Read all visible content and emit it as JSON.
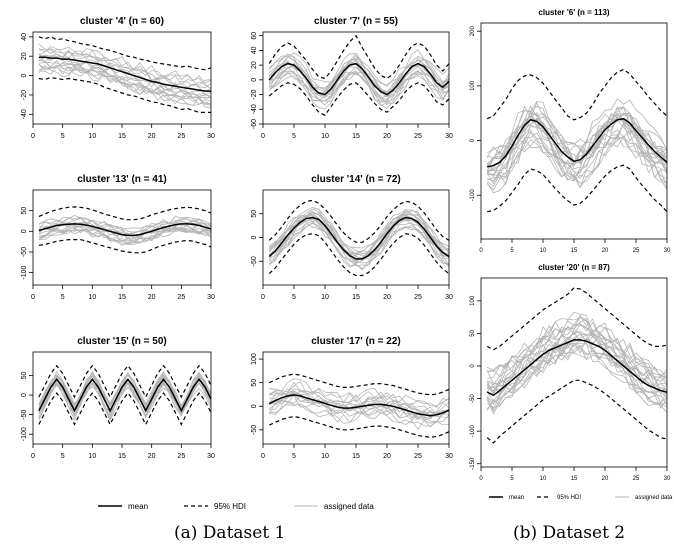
{
  "captions": {
    "left": "(a) Dataset 1",
    "right": "(b) Dataset 2"
  },
  "legend": {
    "mean": "mean",
    "hdi": "95% HDI",
    "data": "assigned data"
  },
  "colors": {
    "mean": "#000000",
    "hdi": "#000000",
    "data": "#b4b4b4"
  },
  "chart_data": [
    {
      "type": "line",
      "title": "cluster '4' (n = 60)",
      "xlim": [
        0,
        30
      ],
      "ylim": [
        -50,
        45
      ],
      "x_ticks": [
        0,
        5,
        10,
        15,
        20,
        25,
        30
      ],
      "y_ticks": [
        -40,
        -20,
        0,
        20,
        40
      ],
      "mean": [
        19,
        19,
        18,
        18,
        17,
        17,
        16,
        15,
        14,
        13,
        12,
        10,
        8,
        6,
        4,
        2,
        0,
        -2,
        -4,
        -6,
        -7,
        -9,
        -10,
        -11,
        -12,
        -13,
        -14,
        -15,
        -16,
        -16
      ],
      "hdi_upper": [
        40,
        38,
        40,
        37,
        38,
        36,
        35,
        33,
        32,
        31,
        29,
        27,
        26,
        24,
        22,
        20,
        19,
        17,
        16,
        14,
        13,
        12,
        11,
        10,
        9,
        10,
        8,
        7,
        6,
        8
      ],
      "hdi_lower": [
        -3,
        -4,
        -2,
        -3,
        -4,
        -3,
        -4,
        -5,
        -6,
        -7,
        -9,
        -12,
        -14,
        -16,
        -18,
        -20,
        -21,
        -23,
        -25,
        -27,
        -28,
        -30,
        -31,
        -33,
        -35,
        -34,
        -36,
        -38,
        -38,
        -38
      ],
      "data_spread": 14,
      "data_lines": 16
    },
    {
      "type": "line",
      "title": "cluster '7' (n = 55)",
      "xlim": [
        0,
        30
      ],
      "ylim": [
        -60,
        65
      ],
      "x_ticks": [
        0,
        5,
        10,
        15,
        20,
        25,
        30
      ],
      "y_ticks": [
        -60,
        -40,
        -20,
        0,
        20,
        40,
        60
      ],
      "mean": [
        0,
        10,
        18,
        22,
        20,
        12,
        2,
        -10,
        -18,
        -20,
        -12,
        0,
        12,
        20,
        22,
        15,
        4,
        -8,
        -16,
        -20,
        -14,
        -4,
        8,
        18,
        22,
        18,
        8,
        -4,
        -10,
        -2
      ],
      "hdi_upper": [
        22,
        35,
        45,
        50,
        46,
        36,
        26,
        14,
        4,
        2,
        12,
        26,
        40,
        52,
        60,
        44,
        30,
        16,
        6,
        2,
        8,
        20,
        34,
        46,
        50,
        46,
        34,
        20,
        12,
        22
      ],
      "hdi_lower": [
        -22,
        -15,
        -8,
        -4,
        -6,
        -12,
        -22,
        -34,
        -44,
        -48,
        -36,
        -24,
        -14,
        -6,
        -4,
        -12,
        -22,
        -32,
        -40,
        -44,
        -36,
        -28,
        -16,
        -8,
        -4,
        -8,
        -18,
        -30,
        -34,
        -26
      ],
      "data_spread": 15,
      "data_lines": 16
    },
    {
      "type": "line",
      "title": "cluster '13' (n = 41)",
      "xlim": [
        0,
        30
      ],
      "ylim": [
        -130,
        100
      ],
      "x_ticks": [
        0,
        5,
        10,
        15,
        20,
        25,
        30
      ],
      "y_ticks": [
        -100,
        -50,
        0,
        50
      ],
      "mean": [
        2,
        6,
        10,
        14,
        16,
        17,
        18,
        17,
        15,
        12,
        8,
        4,
        0,
        -4,
        -8,
        -10,
        -10,
        -8,
        -4,
        0,
        5,
        9,
        13,
        16,
        18,
        18,
        17,
        14,
        10,
        6
      ],
      "hdi_upper": [
        36,
        42,
        48,
        52,
        56,
        58,
        59,
        58,
        56,
        52,
        47,
        42,
        38,
        34,
        30,
        28,
        28,
        30,
        34,
        40,
        44,
        48,
        52,
        55,
        57,
        58,
        57,
        54,
        50,
        44
      ],
      "hdi_lower": [
        -34,
        -32,
        -28,
        -24,
        -22,
        -20,
        -20,
        -20,
        -24,
        -28,
        -32,
        -36,
        -40,
        -44,
        -48,
        -50,
        -52,
        -52,
        -50,
        -44,
        -38,
        -34,
        -30,
        -26,
        -24,
        -22,
        -24,
        -28,
        -32,
        -38
      ],
      "data_spread": 20,
      "data_lines": 16
    },
    {
      "type": "line",
      "title": "cluster '14' (n = 72)",
      "xlim": [
        0,
        30
      ],
      "ylim": [
        -100,
        100
      ],
      "x_ticks": [
        0,
        5,
        10,
        15,
        20,
        25,
        30
      ],
      "y_ticks": [
        -50,
        0,
        50
      ],
      "mean": [
        -40,
        -28,
        -12,
        5,
        20,
        32,
        40,
        42,
        38,
        25,
        8,
        -10,
        -26,
        -38,
        -45,
        -45,
        -38,
        -26,
        -10,
        8,
        24,
        36,
        42,
        40,
        32,
        18,
        0,
        -18,
        -32,
        -40
      ],
      "hdi_upper": [
        -6,
        6,
        22,
        40,
        56,
        68,
        76,
        78,
        72,
        60,
        44,
        26,
        10,
        -2,
        -10,
        -10,
        -2,
        10,
        26,
        44,
        58,
        70,
        76,
        74,
        66,
        52,
        34,
        16,
        2,
        -6
      ],
      "hdi_lower": [
        -76,
        -64,
        -46,
        -30,
        -14,
        -2,
        6,
        8,
        4,
        -10,
        -28,
        -46,
        -62,
        -74,
        -80,
        -80,
        -74,
        -62,
        -46,
        -28,
        -12,
        0,
        8,
        6,
        -2,
        -16,
        -34,
        -52,
        -66,
        -76
      ],
      "data_spread": 18,
      "data_lines": 18
    },
    {
      "type": "line",
      "title": "cluster '15' (n = 50)",
      "xlim": [
        0,
        30
      ],
      "ylim": [
        -125,
        110
      ],
      "x_ticks": [
        0,
        5,
        10,
        15,
        20,
        25,
        30
      ],
      "y_ticks": [
        -100,
        -50,
        0,
        50
      ],
      "mean": [
        -40,
        -10,
        20,
        40,
        20,
        -10,
        -40,
        -10,
        20,
        40,
        20,
        -10,
        -40,
        -10,
        20,
        40,
        20,
        -10,
        -40,
        -10,
        20,
        40,
        20,
        -10,
        -40,
        -10,
        20,
        40,
        20,
        -10
      ],
      "hdi_upper": [
        -5,
        25,
        55,
        75,
        55,
        25,
        -5,
        25,
        55,
        75,
        55,
        25,
        -5,
        25,
        55,
        75,
        55,
        25,
        -5,
        25,
        55,
        75,
        55,
        25,
        -5,
        25,
        55,
        75,
        55,
        25
      ],
      "hdi_lower": [
        -75,
        -45,
        -15,
        5,
        -15,
        -45,
        -75,
        -45,
        -15,
        5,
        -15,
        -45,
        -75,
        -45,
        -15,
        5,
        -15,
        -45,
        -75,
        -45,
        -15,
        5,
        -15,
        -45,
        -75,
        -45,
        -15,
        5,
        -15,
        -45
      ],
      "data_spread": 18,
      "data_lines": 16
    },
    {
      "type": "line",
      "title": "cluster '17' (n = 22)",
      "xlim": [
        0,
        30
      ],
      "ylim": [
        -80,
        115
      ],
      "x_ticks": [
        0,
        5,
        10,
        15,
        20,
        25,
        30
      ],
      "y_ticks": [
        -50,
        0,
        50,
        100
      ],
      "mean": [
        5,
        12,
        18,
        22,
        24,
        22,
        18,
        14,
        10,
        6,
        2,
        -2,
        -4,
        -4,
        -2,
        0,
        2,
        4,
        4,
        2,
        0,
        -4,
        -8,
        -12,
        -16,
        -18,
        -20,
        -18,
        -14,
        -8
      ],
      "hdi_upper": [
        50,
        56,
        62,
        66,
        68,
        66,
        62,
        58,
        54,
        50,
        46,
        42,
        40,
        40,
        42,
        44,
        46,
        48,
        48,
        46,
        44,
        40,
        36,
        32,
        28,
        26,
        24,
        26,
        30,
        36
      ],
      "hdi_lower": [
        -40,
        -34,
        -28,
        -24,
        -22,
        -24,
        -28,
        -32,
        -36,
        -40,
        -44,
        -48,
        -50,
        -50,
        -48,
        -46,
        -44,
        -42,
        -42,
        -44,
        -46,
        -50,
        -54,
        -58,
        -62,
        -64,
        -66,
        -64,
        -60,
        -54
      ],
      "data_spread": 28,
      "data_lines": 14
    },
    {
      "type": "line",
      "title": "cluster '6' (n = 113)",
      "xlim": [
        0,
        30
      ],
      "ylim": [
        -180,
        215
      ],
      "x_ticks": [
        0,
        5,
        10,
        15,
        20,
        25,
        30
      ],
      "y_ticks": [
        -100,
        0,
        100,
        200
      ],
      "mean": [
        -48,
        -46,
        -40,
        -28,
        -10,
        10,
        28,
        38,
        35,
        25,
        10,
        -5,
        -20,
        -30,
        -38,
        -35,
        -25,
        -10,
        5,
        20,
        30,
        38,
        40,
        32,
        18,
        5,
        -8,
        -20,
        -30,
        -40
      ],
      "hdi_upper": [
        40,
        45,
        60,
        75,
        95,
        110,
        118,
        120,
        115,
        105,
        90,
        75,
        60,
        45,
        38,
        42,
        50,
        65,
        85,
        100,
        115,
        125,
        130,
        122,
        108,
        95,
        80,
        68,
        55,
        45
      ],
      "hdi_lower": [
        -130,
        -128,
        -120,
        -110,
        -95,
        -80,
        -62,
        -52,
        -55,
        -62,
        -75,
        -88,
        -100,
        -110,
        -118,
        -115,
        -105,
        -92,
        -78,
        -65,
        -55,
        -48,
        -45,
        -52,
        -68,
        -82,
        -95,
        -108,
        -118,
        -130
      ],
      "data_spread": 40,
      "data_lines": 22
    },
    {
      "type": "line",
      "title": "cluster '20' (n = 87)",
      "xlim": [
        0,
        30
      ],
      "ylim": [
        -155,
        135
      ],
      "x_ticks": [
        0,
        5,
        10,
        15,
        20,
        25,
        30
      ],
      "y_ticks": [
        -150,
        -100,
        -50,
        0,
        50,
        100
      ],
      "mean": [
        -40,
        -45,
        -38,
        -30,
        -22,
        -14,
        -6,
        2,
        10,
        18,
        24,
        28,
        32,
        36,
        40,
        40,
        38,
        34,
        30,
        24,
        16,
        8,
        0,
        -8,
        -16,
        -24,
        -30,
        -34,
        -38,
        -40
      ],
      "hdi_upper": [
        30,
        25,
        30,
        38,
        46,
        54,
        62,
        70,
        78,
        86,
        92,
        98,
        104,
        110,
        120,
        118,
        112,
        104,
        96,
        88,
        80,
        72,
        64,
        56,
        48,
        40,
        34,
        30,
        30,
        32
      ],
      "hdi_lower": [
        -110,
        -118,
        -108,
        -100,
        -92,
        -84,
        -76,
        -68,
        -60,
        -52,
        -46,
        -40,
        -34,
        -28,
        -22,
        -22,
        -26,
        -30,
        -36,
        -42,
        -50,
        -58,
        -66,
        -74,
        -82,
        -90,
        -98,
        -104,
        -110,
        -112
      ],
      "data_spread": 32,
      "data_lines": 22
    }
  ]
}
